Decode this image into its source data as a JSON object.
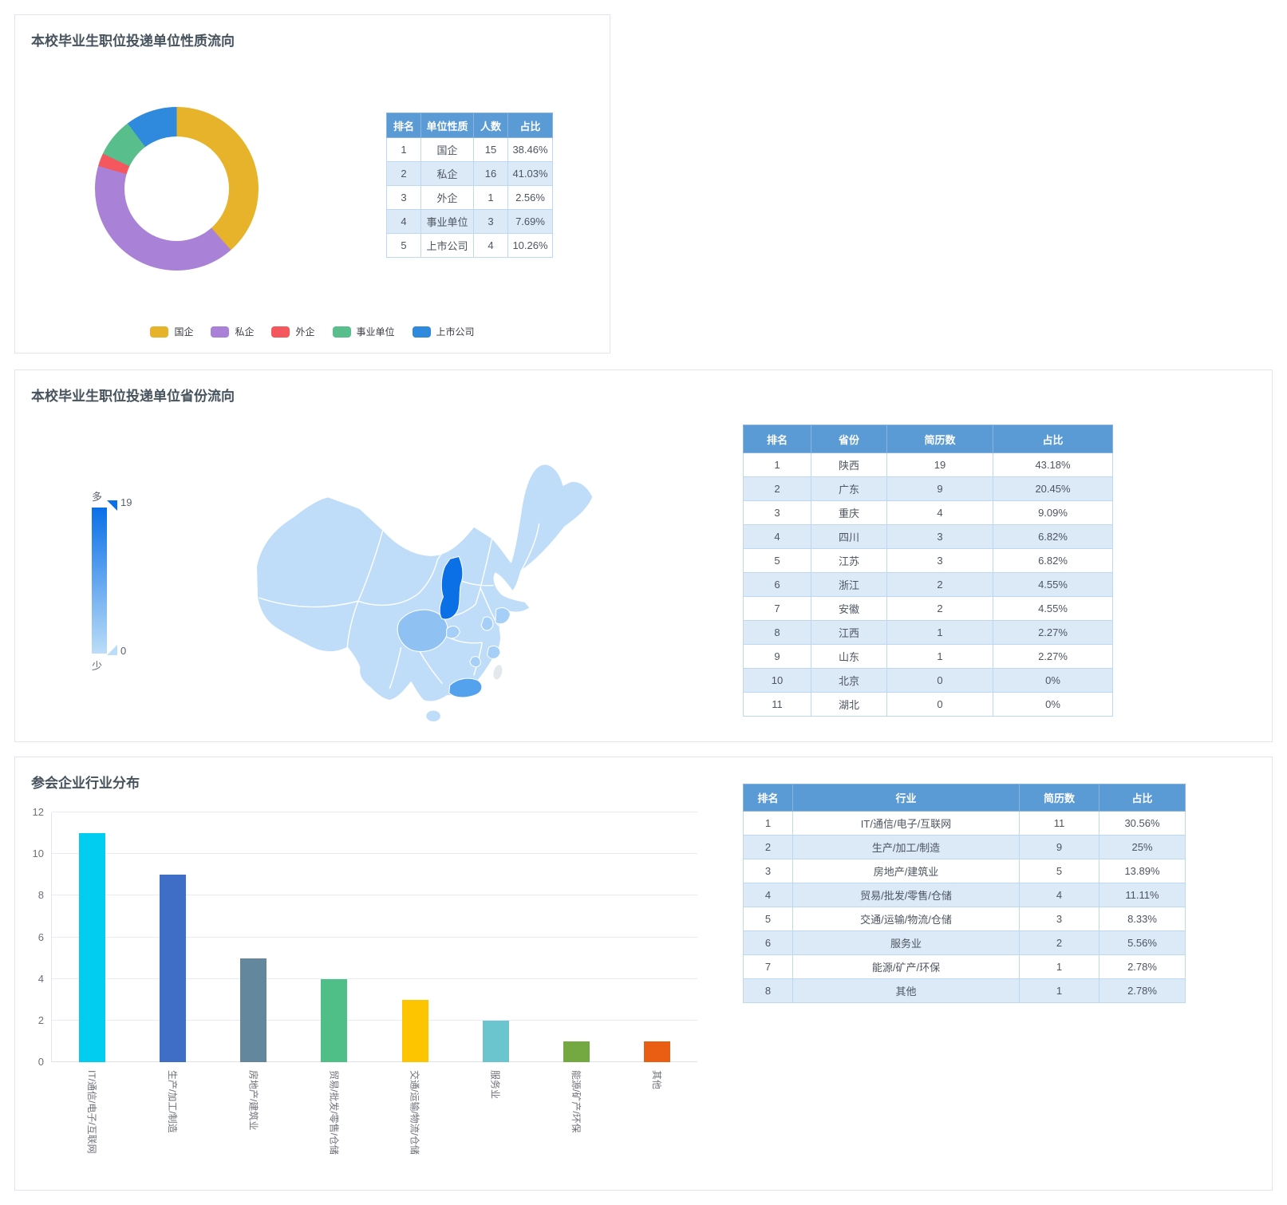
{
  "panels": {
    "unit_nature": {
      "title": "本校毕业生职位投递单位性质流向",
      "table": {
        "headers": [
          "排名",
          "单位性质",
          "人数",
          "占比"
        ],
        "rows": [
          [
            "1",
            "国企",
            "15",
            "38.46%"
          ],
          [
            "2",
            "私企",
            "16",
            "41.03%"
          ],
          [
            "3",
            "外企",
            "1",
            "2.56%"
          ],
          [
            "4",
            "事业单位",
            "3",
            "7.69%"
          ],
          [
            "5",
            "上市公司",
            "4",
            "10.26%"
          ]
        ]
      }
    },
    "province": {
      "title": "本校毕业生职位投递单位省份流向",
      "visualmap": {
        "high_label": "多",
        "low_label": "少",
        "max": "19",
        "min": "0"
      },
      "table": {
        "headers": [
          "排名",
          "省份",
          "简历数",
          "占比"
        ],
        "rows": [
          [
            "1",
            "陕西",
            "19",
            "43.18%"
          ],
          [
            "2",
            "广东",
            "9",
            "20.45%"
          ],
          [
            "3",
            "重庆",
            "4",
            "9.09%"
          ],
          [
            "4",
            "四川",
            "3",
            "6.82%"
          ],
          [
            "5",
            "江苏",
            "3",
            "6.82%"
          ],
          [
            "6",
            "浙江",
            "2",
            "4.55%"
          ],
          [
            "7",
            "安徽",
            "2",
            "4.55%"
          ],
          [
            "8",
            "江西",
            "1",
            "2.27%"
          ],
          [
            "9",
            "山东",
            "1",
            "2.27%"
          ],
          [
            "10",
            "北京",
            "0",
            "0%"
          ],
          [
            "11",
            "湖北",
            "0",
            "0%"
          ]
        ]
      }
    },
    "industry": {
      "title": "参会企业行业分布",
      "table": {
        "headers": [
          "排名",
          "行业",
          "简历数",
          "占比"
        ],
        "rows": [
          [
            "1",
            "IT/通信/电子/互联网",
            "11",
            "30.56%"
          ],
          [
            "2",
            "生产/加工/制造",
            "9",
            "25%"
          ],
          [
            "3",
            "房地产/建筑业",
            "5",
            "13.89%"
          ],
          [
            "4",
            "贸易/批发/零售/仓储",
            "4",
            "11.11%"
          ],
          [
            "5",
            "交通/运输/物流/仓储",
            "3",
            "8.33%"
          ],
          [
            "6",
            "服务业",
            "2",
            "5.56%"
          ],
          [
            "7",
            "能源/矿产/环保",
            "1",
            "2.78%"
          ],
          [
            "8",
            "其他",
            "1",
            "2.78%"
          ]
        ]
      }
    }
  },
  "chart_data": [
    {
      "type": "pie",
      "subtype": "donut",
      "title": "本校毕业生职位投递单位性质流向",
      "categories": [
        "国企",
        "私企",
        "外企",
        "事业单位",
        "上市公司"
      ],
      "values": [
        15,
        16,
        1,
        3,
        4
      ],
      "percentages": [
        "38.46%",
        "41.03%",
        "2.56%",
        "7.69%",
        "10.26%"
      ],
      "colors": [
        "#e6b32b",
        "#a981d6",
        "#f5575f",
        "#57be8c",
        "#2f89dc"
      ],
      "legend_position": "bottom",
      "start_angle_deg": 0,
      "direction": "clockwise"
    },
    {
      "type": "heatmap",
      "subtype": "china-choropleth",
      "title": "本校毕业生职位投递单位省份流向",
      "categories": [
        "陕西",
        "广东",
        "重庆",
        "四川",
        "江苏",
        "浙江",
        "安徽",
        "江西",
        "山东",
        "北京",
        "湖北"
      ],
      "values": [
        19,
        9,
        4,
        3,
        3,
        2,
        2,
        1,
        1,
        0,
        0
      ],
      "visual_min": 0,
      "visual_max": 19,
      "color_scale_low": "#bbddf8",
      "color_scale_high": "#0a6fe8"
    },
    {
      "type": "bar",
      "title": "参会企业行业分布",
      "categories": [
        "IT/通信/电子/互联网",
        "生产/加工/制造",
        "房地产/建筑业",
        "贸易/批发/零售/仓储",
        "交通/运输/物流/仓储",
        "服务业",
        "能源/矿产/环保",
        "其他"
      ],
      "values": [
        11,
        9,
        5,
        4,
        3,
        2,
        1,
        1
      ],
      "colors": [
        "#00cdf0",
        "#3f6ec6",
        "#63889e",
        "#4fbe87",
        "#fdc400",
        "#6bc5ce",
        "#74a840",
        "#ea5e13"
      ],
      "xlabel": "",
      "ylabel": "",
      "ylim": [
        0,
        12
      ],
      "yticks": [
        0,
        2,
        4,
        6,
        8,
        10,
        12
      ],
      "grid": true,
      "legend_position": "none"
    }
  ],
  "map_colors": {
    "base": "#bfddf9",
    "level1": "#a5cff6",
    "sichuan": "#8fc2f2",
    "guangdong": "#54a1ee",
    "shaanxi": "#0b6fe6",
    "nodata": "#e4e8ec"
  }
}
